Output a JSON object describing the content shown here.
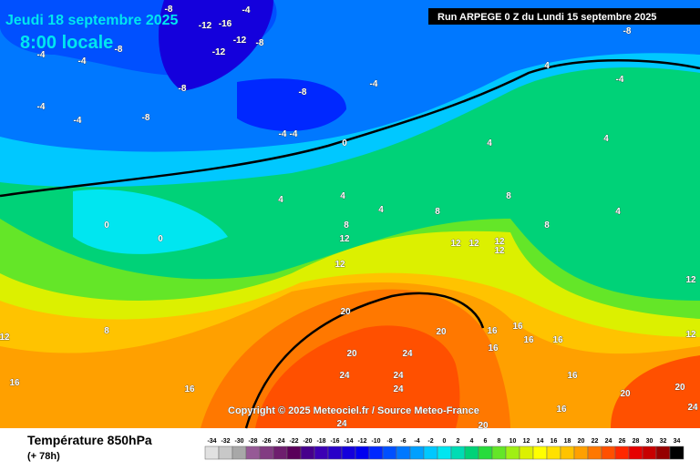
{
  "header": {
    "date": "Jeudi 18 septembre 2025",
    "time": "8:00 locale",
    "run": "Run ARPEGE 0 Z du Lundi 15 septembre 2025"
  },
  "copyright": "Copyright © 2025 Meteociel.fr / Source Meteo-France",
  "footer": {
    "title": "Température 850hPa",
    "lead": "(+ 78h)"
  },
  "legend": {
    "ticks": [
      -34,
      -32,
      -30,
      -28,
      -26,
      -24,
      -22,
      -20,
      -18,
      -16,
      -14,
      -12,
      -10,
      -8,
      -6,
      -4,
      -2,
      0,
      2,
      4,
      6,
      8,
      10,
      12,
      14,
      16,
      18,
      20,
      22,
      24,
      26,
      28,
      30,
      32,
      34
    ],
    "colors": [
      "#e1e1e1",
      "#c8c8c8",
      "#a8a8a8",
      "#965a96",
      "#823c82",
      "#6e1e6e",
      "#5a005a",
      "#46008c",
      "#3c00b4",
      "#2800c8",
      "#1400dc",
      "#0000f0",
      "#0028ff",
      "#0050ff",
      "#0078ff",
      "#00a0ff",
      "#00c8ff",
      "#00e6f0",
      "#00dcb4",
      "#00d278",
      "#28dc3c",
      "#64e628",
      "#a0f014",
      "#dcf000",
      "#ffff00",
      "#ffe100",
      "#ffc300",
      "#ffa000",
      "#ff7800",
      "#ff5000",
      "#ff2800",
      "#e60000",
      "#c80000",
      "#960000",
      "#000000"
    ]
  },
  "map_labels": [
    -8,
    -12,
    -16,
    -12,
    -8,
    -12,
    -4,
    -8,
    -4,
    -4,
    -4,
    -8,
    -8,
    -4,
    -4,
    -8,
    -4,
    -4,
    -8,
    -4,
    0,
    0,
    0,
    4,
    4,
    4,
    4,
    4,
    4,
    4,
    8,
    8,
    8,
    8,
    12,
    12,
    12,
    12,
    12,
    12,
    8,
    12,
    12,
    20,
    20,
    24,
    24,
    24,
    24,
    20,
    16,
    16,
    16,
    16,
    16,
    16,
    20,
    20,
    24,
    24,
    16,
    16,
    12,
    16,
    20
  ]
}
